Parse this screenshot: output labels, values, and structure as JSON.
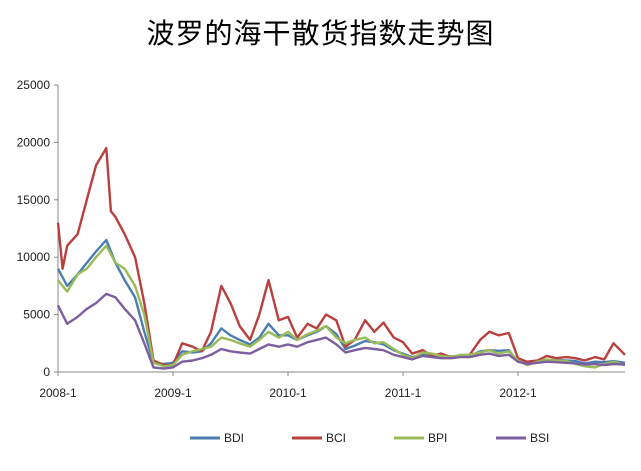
{
  "chart_data": {
    "type": "line",
    "title": "波罗的海干散货指数走势图",
    "xlabel": "",
    "ylabel": "",
    "ylim": [
      0,
      25000
    ],
    "yticks": [
      0,
      5000,
      10000,
      15000,
      20000,
      25000
    ],
    "x_tick_labels": [
      "2008-1",
      "2009-1",
      "2010-1",
      "2011-1",
      "2012-1"
    ],
    "x_tick_values": [
      2008.0,
      2009.0,
      2010.0,
      2011.0,
      2012.0
    ],
    "xlim": [
      2008.0,
      2012.93
    ],
    "grid": false,
    "legend_position": "bottom",
    "series": [
      {
        "name": "BDI",
        "color": "#4a7eb0",
        "x": [
          2008.0,
          2008.08,
          2008.17,
          2008.25,
          2008.33,
          2008.42,
          2008.5,
          2008.58,
          2008.67,
          2008.75,
          2008.83,
          2008.92,
          2009.0,
          2009.08,
          2009.17,
          2009.25,
          2009.33,
          2009.42,
          2009.5,
          2009.58,
          2009.67,
          2009.75,
          2009.83,
          2009.92,
          2010.0,
          2010.08,
          2010.17,
          2010.25,
          2010.33,
          2010.42,
          2010.5,
          2010.58,
          2010.67,
          2010.75,
          2010.83,
          2010.92,
          2011.0,
          2011.08,
          2011.17,
          2011.25,
          2011.33,
          2011.42,
          2011.5,
          2011.58,
          2011.67,
          2011.75,
          2011.83,
          2011.92,
          2012.0,
          2012.08,
          2012.17,
          2012.25,
          2012.33,
          2012.42,
          2012.5,
          2012.58,
          2012.67,
          2012.75,
          2012.83,
          2012.93
        ],
        "values": [
          9000,
          7500,
          8500,
          9500,
          10500,
          11500,
          9500,
          8000,
          6500,
          3500,
          800,
          700,
          800,
          1800,
          1700,
          1800,
          2500,
          3800,
          3200,
          2800,
          2400,
          3000,
          4200,
          3200,
          3200,
          2800,
          3200,
          3500,
          4000,
          3300,
          2000,
          2300,
          2700,
          2600,
          2400,
          1900,
          1600,
          1300,
          1500,
          1400,
          1300,
          1350,
          1350,
          1400,
          1800,
          1900,
          1850,
          1900,
          900,
          750,
          950,
          1000,
          1050,
          1000,
          950,
          750,
          900,
          850,
          950,
          800
        ]
      },
      {
        "name": "BCI",
        "color": "#b8403f",
        "x": [
          2008.0,
          2008.04,
          2008.08,
          2008.17,
          2008.25,
          2008.33,
          2008.42,
          2008.46,
          2008.5,
          2008.58,
          2008.67,
          2008.75,
          2008.83,
          2008.92,
          2009.0,
          2009.08,
          2009.17,
          2009.25,
          2009.33,
          2009.42,
          2009.5,
          2009.58,
          2009.67,
          2009.75,
          2009.83,
          2009.92,
          2010.0,
          2010.08,
          2010.17,
          2010.25,
          2010.33,
          2010.42,
          2010.5,
          2010.58,
          2010.67,
          2010.75,
          2010.83,
          2010.92,
          2011.0,
          2011.08,
          2011.17,
          2011.25,
          2011.33,
          2011.42,
          2011.5,
          2011.58,
          2011.67,
          2011.75,
          2011.83,
          2011.92,
          2012.0,
          2012.08,
          2012.17,
          2012.25,
          2012.33,
          2012.42,
          2012.5,
          2012.58,
          2012.67,
          2012.75,
          2012.83,
          2012.93
        ],
        "values": [
          13000,
          9000,
          11000,
          12000,
          15000,
          18000,
          19500,
          14000,
          13500,
          12000,
          10000,
          6000,
          1000,
          600,
          600,
          2500,
          2200,
          1800,
          3500,
          7500,
          6000,
          4000,
          2800,
          5000,
          8000,
          4500,
          4800,
          3000,
          4200,
          3800,
          5000,
          4500,
          2200,
          2800,
          4500,
          3500,
          4300,
          3000,
          2600,
          1600,
          1900,
          1400,
          1600,
          1300,
          1400,
          1500,
          2800,
          3500,
          3200,
          3400,
          1200,
          900,
          1000,
          1400,
          1200,
          1300,
          1200,
          1000,
          1300,
          1100,
          2500,
          1500
        ]
      },
      {
        "name": "BPI",
        "color": "#9bbb59",
        "x": [
          2008.0,
          2008.08,
          2008.17,
          2008.25,
          2008.33,
          2008.42,
          2008.5,
          2008.58,
          2008.67,
          2008.75,
          2008.83,
          2008.92,
          2009.0,
          2009.08,
          2009.17,
          2009.25,
          2009.33,
          2009.42,
          2009.5,
          2009.58,
          2009.67,
          2009.75,
          2009.83,
          2009.92,
          2010.0,
          2010.08,
          2010.17,
          2010.25,
          2010.33,
          2010.42,
          2010.5,
          2010.58,
          2010.67,
          2010.75,
          2010.83,
          2010.92,
          2011.0,
          2011.08,
          2011.17,
          2011.25,
          2011.33,
          2011.42,
          2011.5,
          2011.58,
          2011.67,
          2011.75,
          2011.83,
          2011.92,
          2012.0,
          2012.08,
          2012.17,
          2012.25,
          2012.33,
          2012.42,
          2012.5,
          2012.58,
          2012.67,
          2012.75,
          2012.83,
          2012.93
        ],
        "values": [
          8000,
          7000,
          8500,
          9000,
          10000,
          11000,
          9500,
          9000,
          7500,
          5000,
          800,
          500,
          600,
          1500,
          1800,
          2000,
          2200,
          3000,
          2800,
          2500,
          2200,
          2800,
          3500,
          3000,
          3500,
          2800,
          3300,
          3600,
          4000,
          3000,
          2500,
          2800,
          3000,
          2500,
          2600,
          2000,
          1500,
          1200,
          1700,
          1600,
          1400,
          1300,
          1500,
          1500,
          1700,
          1900,
          1600,
          1800,
          1000,
          600,
          900,
          1100,
          1000,
          950,
          700,
          500,
          400,
          700,
          900,
          600
        ]
      },
      {
        "name": "BSI",
        "color": "#7d5fa0",
        "x": [
          2008.0,
          2008.08,
          2008.17,
          2008.25,
          2008.33,
          2008.42,
          2008.5,
          2008.58,
          2008.67,
          2008.75,
          2008.83,
          2008.92,
          2009.0,
          2009.08,
          2009.17,
          2009.25,
          2009.33,
          2009.42,
          2009.5,
          2009.58,
          2009.67,
          2009.75,
          2009.83,
          2009.92,
          2010.0,
          2010.08,
          2010.17,
          2010.25,
          2010.33,
          2010.42,
          2010.5,
          2010.58,
          2010.67,
          2010.75,
          2010.83,
          2010.92,
          2011.0,
          2011.08,
          2011.17,
          2011.25,
          2011.33,
          2011.42,
          2011.5,
          2011.58,
          2011.67,
          2011.75,
          2011.83,
          2011.92,
          2012.0,
          2012.08,
          2012.17,
          2012.25,
          2012.33,
          2012.42,
          2012.5,
          2012.58,
          2012.67,
          2012.75,
          2012.83,
          2012.93
        ],
        "values": [
          5800,
          4200,
          4800,
          5500,
          6000,
          6800,
          6500,
          5500,
          4500,
          2500,
          400,
          300,
          400,
          900,
          1000,
          1200,
          1500,
          2000,
          1800,
          1700,
          1600,
          2000,
          2400,
          2200,
          2400,
          2200,
          2600,
          2800,
          3000,
          2400,
          1700,
          1900,
          2100,
          2000,
          1900,
          1500,
          1300,
          1100,
          1400,
          1300,
          1200,
          1200,
          1300,
          1300,
          1500,
          1600,
          1400,
          1500,
          900,
          700,
          800,
          900,
          850,
          800,
          750,
          650,
          700,
          600,
          700,
          650
        ]
      }
    ]
  }
}
